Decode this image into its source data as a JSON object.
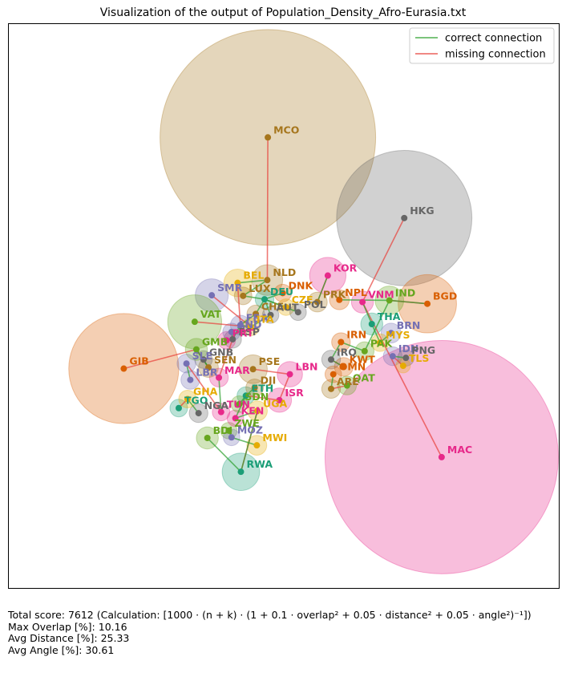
{
  "title": "Visualization of the output of Population_Density_Afro-Eurasia.txt",
  "legend": {
    "correct": {
      "label": "correct connection",
      "color": "#2ca02c"
    },
    "missing": {
      "label": "missing connection",
      "color": "#e8403a"
    }
  },
  "stats": {
    "total": "Total score: 7612  (Calculation: [1000 · (n + k) · (1 + 0.1 · overlap² + 0.05 · distance² + 0.05 · angle²)⁻¹])",
    "max_overlap": "Max Overlap [%]: 10.16",
    "avg_distance": "Avg Distance [%]: 25.33",
    "avg_angle": "Avg Angle [%]: 30.61"
  },
  "chart_data": {
    "type": "scatter",
    "title": "Visualization of the output of Population_Density_Afro-Eurasia.txt",
    "xlim": [
      0,
      100
    ],
    "ylim": [
      0,
      100
    ],
    "grid": false,
    "legend_position": "top-right",
    "nodes": [
      {
        "label": "MCO",
        "x": 47.1,
        "y": 79.9,
        "r": 19.6,
        "color": "#a6761d"
      },
      {
        "label": "HKG",
        "x": 71.9,
        "y": 65.6,
        "r": 12.3,
        "color": "#666666"
      },
      {
        "label": "MAC",
        "x": 78.7,
        "y": 23.2,
        "r": 21.2,
        "color": "#e7298a"
      },
      {
        "label": "GIB",
        "x": 20.9,
        "y": 38.9,
        "r": 10.0,
        "color": "#d95f02"
      },
      {
        "label": "BGD",
        "x": 76.1,
        "y": 50.4,
        "r": 5.3,
        "color": "#d95f02"
      },
      {
        "label": "KOR",
        "x": 58.0,
        "y": 55.4,
        "r": 3.3,
        "color": "#e7298a"
      },
      {
        "label": "NLD",
        "x": 47.0,
        "y": 54.6,
        "r": 2.8,
        "color": "#a6761d"
      },
      {
        "label": "BEL",
        "x": 41.6,
        "y": 54.1,
        "r": 2.5,
        "color": "#e6ab02"
      },
      {
        "label": "SMR",
        "x": 36.9,
        "y": 51.9,
        "r": 3.0,
        "color": "#7570b3"
      },
      {
        "label": "VAT",
        "x": 33.8,
        "y": 47.2,
        "r": 4.9,
        "color": "#66a61e"
      },
      {
        "label": "RWA",
        "x": 42.2,
        "y": 20.6,
        "r": 3.4,
        "color": "#1b9e77"
      },
      {
        "label": "IND",
        "x": 69.2,
        "y": 51.0,
        "r": 2.6,
        "color": "#66a61e"
      },
      {
        "label": "LBN",
        "x": 51.1,
        "y": 37.9,
        "r": 2.3,
        "color": "#e7298a"
      },
      {
        "label": "PSE",
        "x": 44.4,
        "y": 38.8,
        "r": 2.6,
        "color": "#a6761d"
      },
      {
        "label": "LUX",
        "x": 42.6,
        "y": 51.8,
        "r": 1.6,
        "color": "#a6761d"
      },
      {
        "label": "DEU",
        "x": 46.5,
        "y": 51.2,
        "r": 1.7,
        "color": "#1b9e77"
      },
      {
        "label": "DNK",
        "x": 49.8,
        "y": 52.3,
        "r": 1.6,
        "color": "#d95f02"
      },
      {
        "label": "CZE",
        "x": 50.4,
        "y": 49.8,
        "r": 1.5,
        "color": "#e6ab02"
      },
      {
        "label": "PRK",
        "x": 56.1,
        "y": 50.7,
        "r": 1.8,
        "color": "#a6761d"
      },
      {
        "label": "NPL",
        "x": 60.1,
        "y": 51.1,
        "r": 1.8,
        "color": "#d95f02"
      },
      {
        "label": "VNM",
        "x": 64.3,
        "y": 50.7,
        "r": 2.0,
        "color": "#e7298a"
      },
      {
        "label": "THA",
        "x": 66.0,
        "y": 46.8,
        "r": 2.0,
        "color": "#1b9e77"
      },
      {
        "label": "BRN",
        "x": 69.5,
        "y": 45.2,
        "r": 1.8,
        "color": "#7570b3"
      },
      {
        "label": "MYS",
        "x": 67.5,
        "y": 43.5,
        "r": 1.6,
        "color": "#e6ab02"
      },
      {
        "label": "IDN",
        "x": 69.8,
        "y": 41.1,
        "r": 1.7,
        "color": "#7570b3"
      },
      {
        "label": "PNG",
        "x": 72.2,
        "y": 40.8,
        "r": 1.5,
        "color": "#666666"
      },
      {
        "label": "TLS",
        "x": 71.7,
        "y": 39.4,
        "r": 1.3,
        "color": "#e6ab02"
      },
      {
        "label": "PAK",
        "x": 64.7,
        "y": 42.0,
        "r": 1.7,
        "color": "#66a61e"
      },
      {
        "label": "KWT",
        "x": 60.9,
        "y": 39.2,
        "r": 1.7,
        "color": "#d95f02"
      },
      {
        "label": "IRQ",
        "x": 58.6,
        "y": 40.5,
        "r": 1.7,
        "color": "#666666"
      },
      {
        "label": "QAT",
        "x": 61.5,
        "y": 35.9,
        "r": 1.7,
        "color": "#66a61e"
      },
      {
        "label": "ARE",
        "x": 58.6,
        "y": 35.3,
        "r": 1.7,
        "color": "#a6761d"
      },
      {
        "label": "OMN",
        "x": 59.0,
        "y": 37.9,
        "r": 1.5,
        "color": "#d95f02"
      },
      {
        "label": "ISR",
        "x": 49.2,
        "y": 33.3,
        "r": 2.2,
        "color": "#e7298a"
      },
      {
        "label": "UGA",
        "x": 45.2,
        "y": 31.4,
        "r": 1.8,
        "color": "#e6ab02"
      },
      {
        "label": "MWI",
        "x": 45.1,
        "y": 25.3,
        "r": 1.8,
        "color": "#e6ab02"
      },
      {
        "label": "MAR",
        "x": 38.2,
        "y": 37.3,
        "r": 1.7,
        "color": "#e7298a"
      },
      {
        "label": "SEN",
        "x": 36.3,
        "y": 39.1,
        "r": 1.8,
        "color": "#a6761d"
      },
      {
        "label": "GNB",
        "x": 35.4,
        "y": 40.5,
        "r": 1.6,
        "color": "#666666"
      },
      {
        "label": "GMB",
        "x": 34.1,
        "y": 42.3,
        "r": 2.0,
        "color": "#66a61e"
      },
      {
        "label": "SLE",
        "x": 32.3,
        "y": 39.8,
        "r": 1.7,
        "color": "#7570b3"
      },
      {
        "label": "FRA",
        "x": 42.1,
        "y": 46.6,
        "r": 1.8,
        "color": "#7570b3"
      },
      {
        "label": "CHE",
        "x": 44.9,
        "y": 48.6,
        "r": 1.6,
        "color": "#a6761d"
      },
      {
        "label": "AUT",
        "x": 47.6,
        "y": 48.4,
        "r": 1.5,
        "color": "#666666"
      },
      {
        "label": "POL",
        "x": 52.6,
        "y": 48.9,
        "r": 1.5,
        "color": "#666666"
      },
      {
        "label": "ESP",
        "x": 40.7,
        "y": 44.1,
        "r": 1.6,
        "color": "#666666"
      },
      {
        "label": "PRT",
        "x": 39.6,
        "y": 43.9,
        "r": 1.6,
        "color": "#e7298a"
      },
      {
        "label": "AND",
        "x": 40.5,
        "y": 45.4,
        "r": 1.6,
        "color": "#7570b3"
      },
      {
        "label": "ITA",
        "x": 44.0,
        "y": 46.3,
        "r": 1.6,
        "color": "#e6ab02"
      },
      {
        "label": "IRN",
        "x": 60.4,
        "y": 43.6,
        "r": 1.7,
        "color": "#d95f02"
      },
      {
        "label": "TUN",
        "x": 38.6,
        "y": 31.2,
        "r": 1.6,
        "color": "#e7298a"
      },
      {
        "label": "BDI",
        "x": 36.1,
        "y": 26.6,
        "r": 2.0,
        "color": "#66a61e"
      },
      {
        "label": "TGO",
        "x": 30.9,
        "y": 31.9,
        "r": 1.6,
        "color": "#1b9e77"
      },
      {
        "label": "NGA",
        "x": 34.5,
        "y": 31.0,
        "r": 1.7,
        "color": "#666666"
      },
      {
        "label": "ETH",
        "x": 43.1,
        "y": 34.1,
        "r": 1.6,
        "color": "#1b9e77"
      },
      {
        "label": "DJI",
        "x": 44.7,
        "y": 35.5,
        "r": 1.6,
        "color": "#a6761d"
      },
      {
        "label": "LBR",
        "x": 33.0,
        "y": 36.9,
        "r": 1.7,
        "color": "#7570b3"
      },
      {
        "label": "ZWE",
        "x": 40.0,
        "y": 27.9,
        "r": 1.5,
        "color": "#66a61e"
      },
      {
        "label": "MOZ",
        "x": 40.5,
        "y": 26.7,
        "r": 1.5,
        "color": "#7570b3"
      },
      {
        "label": "KEN",
        "x": 41.2,
        "y": 30.1,
        "r": 1.5,
        "color": "#e7298a"
      },
      {
        "label": "SDN",
        "x": 41.9,
        "y": 32.6,
        "r": 1.5,
        "color": "#66a61e"
      },
      {
        "label": "GHA",
        "x": 32.5,
        "y": 33.5,
        "r": 1.6,
        "color": "#e6ab02"
      }
    ],
    "missing_edges": [
      [
        "MCO",
        "NLD"
      ],
      [
        "HKG",
        "VNM"
      ],
      [
        "MAC",
        "VNM"
      ],
      [
        "GIB",
        "GMB"
      ],
      [
        "BGD",
        "IND"
      ],
      [
        "KOR",
        "PRK"
      ],
      [
        "RWA",
        "UGA"
      ],
      [
        "LBN",
        "ISR"
      ],
      [
        "PSE",
        "LBN"
      ],
      [
        "SMR",
        "ITA"
      ],
      [
        "BEL",
        "FRA"
      ],
      [
        "GMB",
        "SEN"
      ],
      [
        "MAR",
        "ESP"
      ],
      [
        "ETH",
        "ISR"
      ],
      [
        "KWT",
        "IRQ"
      ],
      [
        "QAT",
        "ARE"
      ],
      [
        "TLS",
        "IDN"
      ],
      [
        "VAT",
        "ITA"
      ],
      [
        "SLE",
        "TUN"
      ],
      [
        "TGO",
        "GHA"
      ]
    ],
    "correct_edges": [
      [
        "BEL",
        "NLD"
      ],
      [
        "NLD",
        "LUX"
      ],
      [
        "LUX",
        "DEU"
      ],
      [
        "DEU",
        "DNK"
      ],
      [
        "DEU",
        "CZE"
      ],
      [
        "DEU",
        "POL"
      ],
      [
        "DEU",
        "AUT"
      ],
      [
        "DEU",
        "CHE"
      ],
      [
        "CHE",
        "FRA"
      ],
      [
        "FRA",
        "ESP"
      ],
      [
        "ESP",
        "PRT"
      ],
      [
        "ESP",
        "AND"
      ],
      [
        "FRA",
        "ITA"
      ],
      [
        "AUT",
        "ITA"
      ],
      [
        "PRK",
        "KOR"
      ],
      [
        "NPL",
        "IND"
      ],
      [
        "IND",
        "PAK"
      ],
      [
        "IND",
        "BGD"
      ],
      [
        "THA",
        "MYS"
      ],
      [
        "MYS",
        "BRN"
      ],
      [
        "IDN",
        "PNG"
      ],
      [
        "VNM",
        "THA"
      ],
      [
        "IRN",
        "PAK"
      ],
      [
        "IRN",
        "IRQ"
      ],
      [
        "IRQ",
        "KWT"
      ],
      [
        "OMN",
        "ARE"
      ],
      [
        "SEN",
        "GMB"
      ],
      [
        "SEN",
        "GNB"
      ],
      [
        "SLE",
        "LBR"
      ],
      [
        "GHA",
        "NGA"
      ],
      [
        "ETH",
        "DJI"
      ],
      [
        "ETH",
        "KEN"
      ],
      [
        "KEN",
        "UGA"
      ],
      [
        "UGA",
        "RWA"
      ],
      [
        "RWA",
        "BDI"
      ],
      [
        "MWI",
        "MOZ"
      ],
      [
        "MOZ",
        "ZWE"
      ],
      [
        "SDN",
        "ETH"
      ],
      [
        "TUN",
        "MAR"
      ]
    ]
  }
}
